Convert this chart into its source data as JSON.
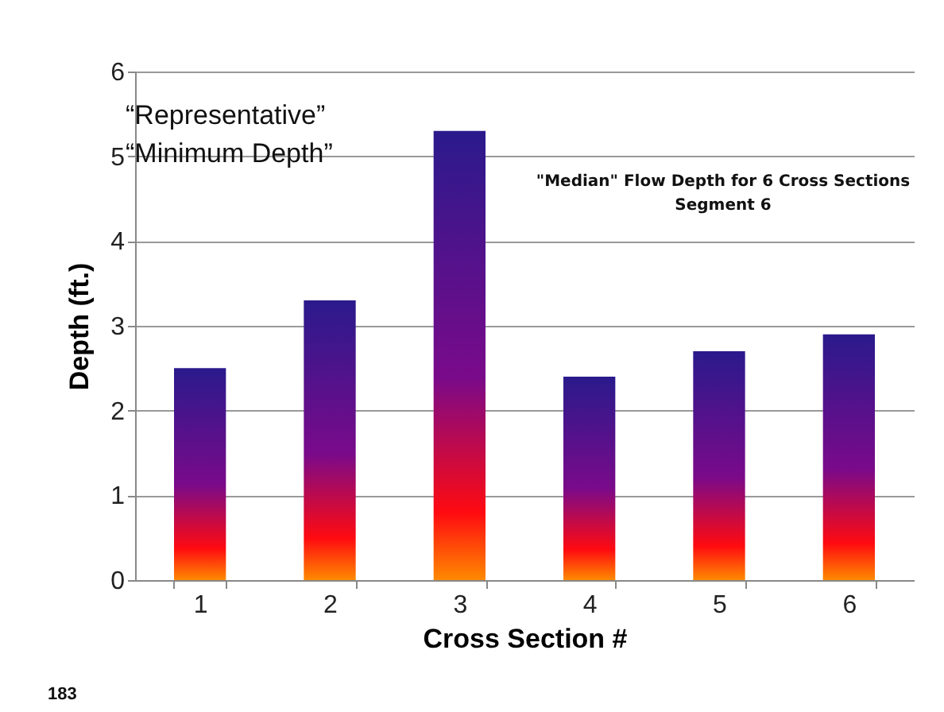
{
  "chart_data": {
    "type": "bar",
    "title": "\"Median\" Flow Depth for 6 Cross Sections\nSegment 6",
    "xlabel": "Cross Section #",
    "ylabel": "Depth (ft.)",
    "categories": [
      "1",
      "2",
      "3",
      "4",
      "5",
      "6"
    ],
    "values": [
      2.5,
      3.3,
      5.3,
      2.4,
      2.7,
      2.9
    ],
    "color": "#2a1a8c",
    "ylim": [
      0,
      6
    ],
    "yticks": [
      0,
      1,
      2,
      3,
      4,
      5,
      6
    ],
    "grid": "y",
    "annotations": [
      "“Representative”\n“Minimum Depth”",
      "183"
    ]
  }
}
